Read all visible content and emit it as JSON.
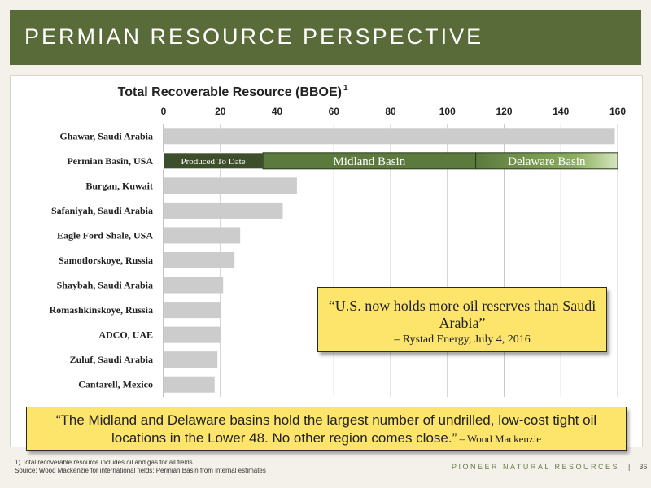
{
  "header": {
    "title": "PERMIAN RESOURCE PERSPECTIVE"
  },
  "chart_data": {
    "type": "bar",
    "orientation": "horizontal",
    "title": "Total Recoverable Resource (BBOE)",
    "title_superscript": "1",
    "xlim": [
      0,
      160
    ],
    "xticks": [
      0,
      20,
      40,
      60,
      80,
      100,
      120,
      140,
      160
    ],
    "grid": true,
    "categories": [
      "Ghawar, Saudi Arabia",
      "Permian Basin, USA",
      "Burgan, Kuwait",
      "Safaniyah, Saudi Arabia",
      "Eagle Ford Shale, USA",
      "Samotlorskoye, Russia",
      "Shaybah, Saudi Arabia",
      "Romashkinskoye, Russia",
      "ADCO, UAE",
      "Zuluf, Saudi Arabia",
      "Cantarell, Mexico"
    ],
    "values": [
      159,
      160,
      47,
      42,
      27,
      25,
      21,
      20,
      20,
      19,
      18
    ],
    "permian_segments": [
      {
        "label": "Produced To Date",
        "start": 0,
        "end": 35,
        "color": "#3d4f2a"
      },
      {
        "label": "Midland Basin",
        "start": 35,
        "end": 110,
        "color": "#5d7a3e"
      },
      {
        "label": "Delaware Basin",
        "start": 110,
        "end": 160,
        "color": "#6f9248"
      }
    ],
    "bar_color": "#cccccc"
  },
  "quotes": {
    "rystad_text": "“U.S. now holds more oil reserves than Saudi Arabia”",
    "rystad_attr": "– Rystad Energy, July 4, 2016",
    "wm_text": "“The Midland and Delaware basins hold the largest number of undrilled, low-cost tight oil locations in the Lower 48. No other region comes close.”",
    "wm_attr": " – Wood Mackenzie"
  },
  "footer": {
    "note1": "1) Total recoverable resource includes oil and gas for all fields",
    "note2": "Source: Wood Mackenzie for international fields; Permian Basin from internal estimates",
    "brand": "PIONEER NATURAL RESOURCES",
    "separator": "|",
    "page": "36"
  }
}
